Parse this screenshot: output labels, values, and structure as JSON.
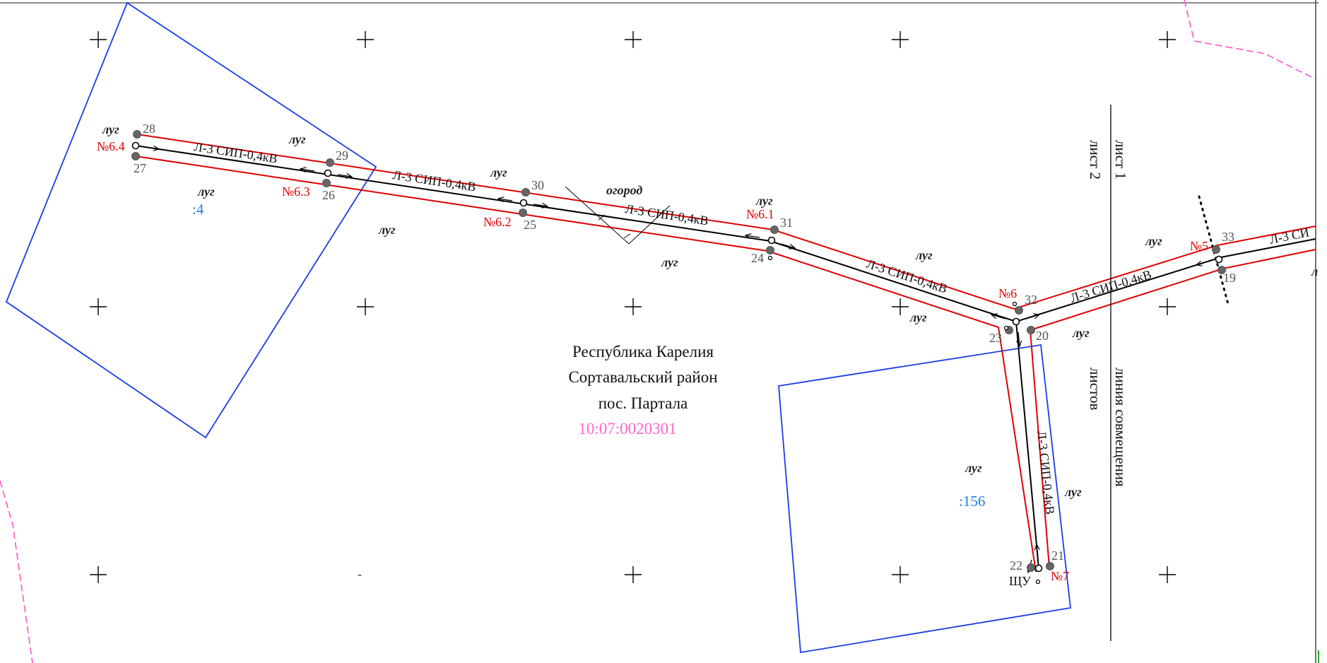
{
  "colors": {
    "corridor": "#e00000",
    "parcel_boundary": "#1a3ce6",
    "cadastral_boundary": "#ff55cc",
    "line": "#000000",
    "parcel_label": "#1e7fe0",
    "cadastral_number": "#ff66cc",
    "vertex": "#666666"
  },
  "address": {
    "republic": "Республика Карелия",
    "district": "Сортавальский район",
    "settlement": "пос. Партала",
    "cadastral_quarter": "10:07:0020301"
  },
  "sheets": {
    "sheet1": "лист 1",
    "sheet2": "лист 2",
    "junction_line": "линия совмещения",
    "junction_line_2": "листов"
  },
  "land_labels": [
    "луг",
    "луг",
    "луг",
    "луг",
    "луг",
    "огород",
    "луг",
    "луг",
    "луг",
    "луг",
    "луг",
    "луг",
    "луг",
    "луг",
    "л"
  ],
  "parcels": [
    ":4",
    ":156"
  ],
  "poles": [
    "№6.4",
    "№6.3",
    "№6.2",
    "№6.1",
    "№6",
    "№5",
    "№7"
  ],
  "points": [
    "28",
    "27",
    "29",
    "26",
    "30",
    "25",
    "31",
    "24",
    "32",
    "23",
    "20",
    "33",
    "19",
    "22",
    "21"
  ],
  "line_labels": [
    "Л-3 СИП-0,4кВ",
    "Л-3 СИП-0,4кВ",
    "Л-3 СИП-0,4кВ",
    "Л-3 СИП-0,4кВ",
    "Л-3 СИП-0,4кВ",
    "Л-3 СИП-0,4кВ",
    "Л-3 СИ"
  ],
  "equipment": {
    "shu": "ЩУ"
  },
  "misc": {
    "dash_mark": "-"
  }
}
